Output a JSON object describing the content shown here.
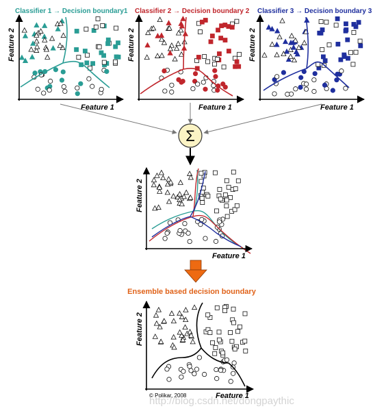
{
  "panels": [
    {
      "title": "Classifier 1 → Decision boundary1",
      "xlabel": "Feature 1",
      "ylabel": "Feature 2",
      "color": "#2a9d95"
    },
    {
      "title": "Classifier 2 → Decision boundary 2",
      "xlabel": "Feature 1",
      "ylabel": "Feature 2",
      "color": "#c0262c"
    },
    {
      "title": "Classifier 3 → Decision boundary 3",
      "xlabel": "Feature 1",
      "ylabel": "Feature 2",
      "color": "#1f2f9e"
    }
  ],
  "sum_symbol": "Σ",
  "sum_fill": "#fbf3c4",
  "combined": {
    "xlabel": "Feature 1",
    "ylabel": "Feature 2"
  },
  "arrow_color": "#ee6a12",
  "ensemble_title": "Ensemble based decision boundary",
  "ensemble_title_color": "#e0631a",
  "final": {
    "xlabel": "Feature 1",
    "ylabel": "Feature 2"
  },
  "copyright": "© Polikar, 2008",
  "watermark": "http://blog.csdn.net/dongpaythic"
}
